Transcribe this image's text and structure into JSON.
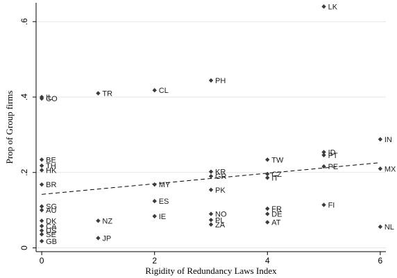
{
  "chart_data": {
    "type": "scatter",
    "xlabel": "Rigidity of Redundancy Laws Index",
    "ylabel": "Prop of Group firms",
    "xlim": [
      -0.1,
      6.1
    ],
    "ylim": [
      -0.01,
      0.65
    ],
    "x_ticks": [
      0,
      2,
      4,
      6
    ],
    "x_tick_labels": [
      "0",
      "2",
      "4",
      "6"
    ],
    "y_ticks": [
      0,
      0.2,
      0.4,
      0.6
    ],
    "y_tick_labels": [
      "0",
      ".2",
      ".4",
      ".6"
    ],
    "grid": true,
    "fit_line": {
      "style": "dashed",
      "x": [
        0,
        6
      ],
      "y": [
        0.142,
        0.226
      ]
    },
    "points": [
      {
        "label": "IL",
        "x": 0,
        "y": 0.4
      },
      {
        "label": "CO",
        "x": 0,
        "y": 0.396
      },
      {
        "label": "BE",
        "x": 0,
        "y": 0.234
      },
      {
        "label": "TH",
        "x": 0,
        "y": 0.218
      },
      {
        "label": "HK",
        "x": 0,
        "y": 0.206
      },
      {
        "label": "BR",
        "x": 0,
        "y": 0.168
      },
      {
        "label": "SG",
        "x": 0,
        "y": 0.11
      },
      {
        "label": "AU",
        "x": 0,
        "y": 0.1
      },
      {
        "label": "DK",
        "x": 0,
        "y": 0.072
      },
      {
        "label": "CA",
        "x": 0,
        "y": 0.058
      },
      {
        "label": "US",
        "x": 0,
        "y": 0.046
      },
      {
        "label": "SE",
        "x": 0,
        "y": 0.036
      },
      {
        "label": "GB",
        "x": 0,
        "y": 0.018
      },
      {
        "label": "TR",
        "x": 1,
        "y": 0.41
      },
      {
        "label": "NZ",
        "x": 1,
        "y": 0.072
      },
      {
        "label": "JP",
        "x": 1,
        "y": 0.026
      },
      {
        "label": "CL",
        "x": 2,
        "y": 0.418
      },
      {
        "label": "MY",
        "x": 2,
        "y": 0.168
      },
      {
        "label": "ES",
        "x": 2,
        "y": 0.124
      },
      {
        "label": "IE",
        "x": 2,
        "y": 0.084
      },
      {
        "label": "PH",
        "x": 3,
        "y": 0.444
      },
      {
        "label": "KR",
        "x": 3,
        "y": 0.202
      },
      {
        "label": "GR",
        "x": 3,
        "y": 0.19
      },
      {
        "label": "PK",
        "x": 3,
        "y": 0.154
      },
      {
        "label": "NO",
        "x": 3,
        "y": 0.09
      },
      {
        "label": "PL",
        "x": 3,
        "y": 0.074
      },
      {
        "label": "ZA",
        "x": 3,
        "y": 0.062
      },
      {
        "label": "TW",
        "x": 4,
        "y": 0.234
      },
      {
        "label": "CZ",
        "x": 4,
        "y": 0.196
      },
      {
        "label": "IT",
        "x": 4,
        "y": 0.186
      },
      {
        "label": "FR",
        "x": 4,
        "y": 0.104
      },
      {
        "label": "DE",
        "x": 4,
        "y": 0.09
      },
      {
        "label": "AT",
        "x": 4,
        "y": 0.068
      },
      {
        "label": "LK",
        "x": 5,
        "y": 0.64
      },
      {
        "label": "ID",
        "x": 5,
        "y": 0.254
      },
      {
        "label": "PT",
        "x": 5,
        "y": 0.246
      },
      {
        "label": "PE",
        "x": 5,
        "y": 0.216
      },
      {
        "label": "FI",
        "x": 5,
        "y": 0.114
      },
      {
        "label": "IN",
        "x": 6,
        "y": 0.288
      },
      {
        "label": "MX",
        "x": 6,
        "y": 0.21
      },
      {
        "label": "NL",
        "x": 6,
        "y": 0.056
      }
    ]
  }
}
